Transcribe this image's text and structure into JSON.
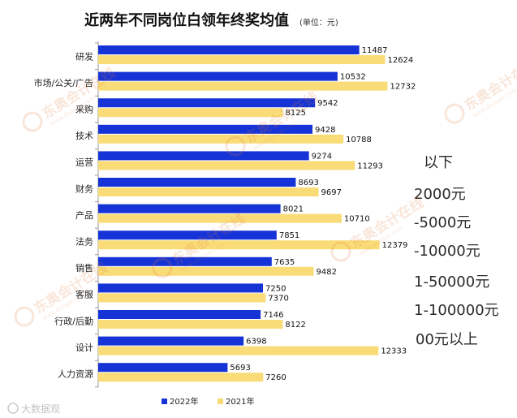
{
  "chart_data": {
    "type": "bar",
    "orientation": "horizontal",
    "title": "近两年不同岗位白领年终奖均值",
    "subtitle": "(单位：元)",
    "categories": [
      "研发",
      "市场/公关/广告",
      "采购",
      "技术",
      "运营",
      "财务",
      "产品",
      "法务",
      "销售",
      "客服",
      "行政/后勤",
      "设计",
      "人力资源"
    ],
    "series": [
      {
        "name": "2022年",
        "color": "#1533d6",
        "values": [
          11487,
          10532,
          9542,
          9428,
          9274,
          8693,
          8021,
          7851,
          7635,
          7250,
          7146,
          6398,
          5693
        ]
      },
      {
        "name": "2021年",
        "color": "#f9dc78",
        "values": [
          12624,
          12732,
          8125,
          10788,
          11293,
          9697,
          10710,
          12379,
          9482,
          7370,
          8122,
          12333,
          7260
        ]
      }
    ],
    "xlim": [
      0,
      13500
    ],
    "legend": "bottom-center",
    "grid": false
  },
  "background_fragments": [
    "以下",
    "2000元",
    "-5000元",
    "-10000元",
    "1-50000元",
    "1-100000元",
    "00元以上"
  ],
  "watermark": {
    "text": "东奥会计在线",
    "url": "www.dongao.com"
  },
  "source": "大数据观"
}
